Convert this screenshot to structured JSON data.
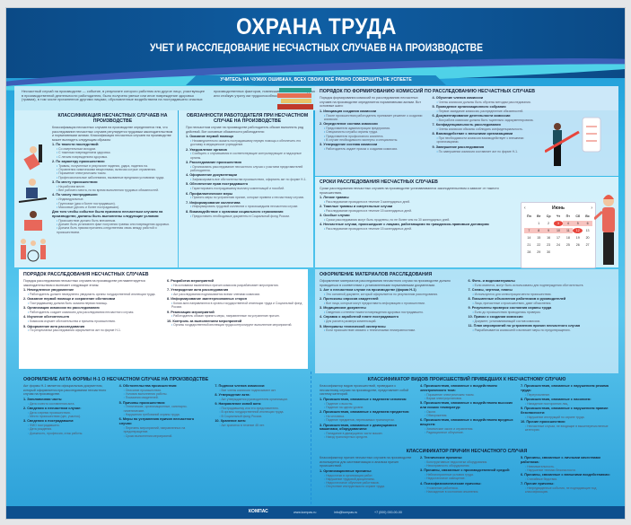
{
  "header": {
    "title": "ОХРАНА ТРУДА",
    "subtitle": "УЧЕТ И РАССЛЕДОВАНИЕ НЕСЧАСТНЫХ СЛУЧАЕВ НА ПРОИЗВОДСТВЕ",
    "tagline": "УЧИТЕСЬ НА ЧУЖИХ ОШИБКАХ, ВСЕХ СВОИХ ВСЁ РАВНО СОВЕРШИТЬ НЕ УСПЕЕТЕ"
  },
  "intro": {
    "text": "Несчастный случай на производстве — событие, в результате которого работник или другое лицо, участвующее в производственной деятельности работодателя, было получено увечье или иное повреждение здоровья (травма), в том числе причиненное другими лицами, обусловленные воздействием на пострадавшего опасных производственных факторов, повлекшие за собой необходимость его перевода на другую работу, временную или стойкую утрату им трудоспособности либо его смерть."
  },
  "sections": [
    {
      "id": "classification",
      "title": "Классификация несчастных случаев на производстве",
      "intro": "Классификация несчастных случаев на производстве определяется тем, что расследование несчастных случаев регулируется трудовым законодательством и нормативными актами. Классификация несчастных случаев на производстве может выглядеть следующим образом:",
      "items": [
        {
          "h": "1. По тяжести последствий:",
          "l": [
            "Со смертельным исходом.",
            "С тяжелым повреждением здоровья.",
            "С легким повреждением здоровья."
          ]
        },
        {
          "h": "2. По характеру происшествия:",
          "l": [
            "Травмы, полученные в результате падения, удара, падения на.",
            "Отравления химическими веществами, включая острые отравления.",
            "Поражение электрическим током.",
            "Профессиональные заболевания, вызванные вредными условиями труда."
          ]
        },
        {
          "h": "3. По месту происшествия:",
          "l": [
            "На рабочем месте.",
            "Вне рабочего места, но во время выполнения трудовых обязанностей."
          ]
        },
        {
          "h": "4. По числу пострадавших:",
          "l": [
            "Индивидуальные.",
            "Групповые (два и более пострадавших).",
            "Массовые (десять и более пострадавших)."
          ]
        },
        {
          "h": "Для того чтобы событие было признано несчастным случаем на производстве, должны быть выполнены следующие условия:",
          "l": [
            "Происшествие должно быть внезапным.",
            "Должен быть установлен факт получения травмы или повреждения здоровья.",
            "Должна быть прямая причинно-следственная связь между работой и происшествием."
          ]
        }
      ]
    },
    {
      "id": "duties",
      "title": "Обязанности работодателя при несчастном случае на производстве",
      "intro": "При несчастном случае на производстве работодатель обязан выполнить ряд действий. Вот основные обязанности работодателя:",
      "items": [
        {
          "h": "1. Оказание первой помощи",
          "l": [
            "Незамедлительно оказать пострадавшему первую помощь и обеспечить его доставку в медицинское учреждение."
          ]
        },
        {
          "h": "2. Уведомление органов",
          "l": [
            "Сообщить о случившемся в соответствующие контролирующие и надзорные органы."
          ]
        },
        {
          "h": "3. Расследование происшествия",
          "l": [
            "Организовать расследование несчастного случая с участием представителей работодателя."
          ]
        },
        {
          "h": "4. Оформление документации",
          "l": [
            "Зафиксировать все обстоятельства происшествия, оформить акт по форме Н-1."
          ]
        },
        {
          "h": "5. Обеспечение прав пострадавшего",
          "l": [
            "Гарантировать пострадавшему выплату компенсаций и пособий."
          ]
        },
        {
          "h": "6. Профилактические меры",
          "l": [
            "Принять меры по устранению причин, которые привели к несчастному случаю."
          ]
        },
        {
          "h": "7. Информирование коллектива",
          "l": [
            "Информировать трудовой коллектив о произошедшем несчастном случае."
          ]
        },
        {
          "h": "8. Взаимодействие с органами социального страхования",
          "l": [
            "Предоставить необходимые документы в Социальный фонд России."
          ]
        }
      ]
    },
    {
      "id": "commission",
      "title": "Порядок по формированию комиссий по расследованию несчастных случаев",
      "intro": "Порядок формирования комиссий по расследованию несчастных случаев на производстве определяется нормативными актами. Вот основные шаги:",
      "items": [
        {
          "h": "1. Инициация создания комиссии",
          "l": [
            "После происшествия работодатель принимает решение о создании комиссии."
          ]
        },
        {
          "h": "2. Определение состава комиссии",
          "l": [
            "Представители администрации предприятия.",
            "Специалисты службы охраны труда.",
            "Представители профсоюзного комитета.",
            "В случае необходимости эксперты и специалисты."
          ]
        },
        {
          "h": "3. Утверждение состава комиссии",
          "l": [
            "Работодатель издает приказ о создании комиссии."
          ]
        },
        {
          "h": "4. Обучение членов комиссии",
          "l": [
            "Члены комиссии должны быть обучены методам расследования."
          ]
        },
        {
          "h": "5. Проведение организационного собрания",
          "l": [
            "Первое заседание комиссии, распределение обязанностей."
          ]
        },
        {
          "h": "6. Документирование деятельности комиссии",
          "l": [
            "Вся работа комиссии должна быть тщательно задокументирована."
          ]
        },
        {
          "h": "7. Конфиденциальность расследования",
          "l": [
            "Члены комиссии обязаны соблюдать конфиденциальность."
          ]
        },
        {
          "h": "8. Взаимодействие с внешними организациями",
          "l": [
            "При необходимости комиссия взаимодействует с внешними организациями."
          ]
        },
        {
          "h": "9. Завершение расследования",
          "l": [
            "По завершении комиссия составляет акт по форме Н-1."
          ]
        }
      ]
    },
    {
      "id": "deadlines",
      "title": "Сроки расследования несчастных случаев",
      "intro": "Сроки расследования несчастных случаев на производстве устанавливаются законодательством и зависят от тяжести происшествия.",
      "items": [
        {
          "h": "1. Легкие травмы",
          "l": [
            "Расследование проводится в течение 3 календарных дней."
          ]
        },
        {
          "h": "2. Тяжелые травмы и смертельные случаи",
          "l": [
            "Расследование проводится в течение 15 календарных дней."
          ]
        },
        {
          "h": "3. Особые случаи",
          "l": [
            "Сроки расследования могут быть продлены, но не более чем на 30 календарных дней."
          ]
        },
        {
          "h": "4. Несчастные случаи, происшедшие с лицами, работающими по гражданско-правовым договорам",
          "l": [
            "Расследование проводится в течение 15 календарных дней."
          ]
        }
      ]
    },
    {
      "id": "procedure",
      "title": "Порядок расследования несчастных случаев",
      "intro": "Порядок расследования несчастных случаев на производстве регламентируется законодательством и включает следующие этапы:",
      "items": [
        {
          "h": "1. Немедленное уведомление",
          "l": [
            "Работодатель должен немедленно уведомить органы государственной инспекции труда."
          ]
        },
        {
          "h": "2. Оказание первой помощи и сохранение обстановки",
          "l": [
            "Пострадавшему должна быть оказана первая помощь."
          ]
        },
        {
          "h": "3. Организация комиссии по расследованию",
          "l": [
            "Работодатель создает комиссию для расследования несчастного случая."
          ]
        },
        {
          "h": "4. Изучение обстоятельств",
          "l": [
            "Комиссия изучает обстоятельства и причины происшествия."
          ]
        },
        {
          "h": "5. Оформление акта расследования",
          "l": [
            "По результатам расследования оформляется акт по форме Н-1."
          ]
        },
        {
          "h": "6. Разработка мероприятий",
          "l": [
            "На основании выявленных причин комиссия разрабатывает мероприятия."
          ]
        },
        {
          "h": "7. Утверждение акта расследования",
          "l": [
            "Акт расследования подписывается всеми членами комиссии."
          ]
        },
        {
          "h": "8. Информирование заинтересованных сторон",
          "l": [
            "Копии акта направляются в органы государственной инспекции труда и Социальный фонд России."
          ]
        },
        {
          "h": "9. Реализация мероприятий",
          "l": [
            "Работодатель обязан принять меры, направленные на устранение причин."
          ]
        },
        {
          "h": "10. Контроль за выполнением мероприятий",
          "l": [
            "Органы государственной инспекции труда контролируют выполнение мероприятий."
          ]
        }
      ]
    },
    {
      "id": "materials",
      "title": "Оформление материалов расследования",
      "intro": "Оформление материалов расследования несчастного случая на производстве должно проводиться в соответствии с установленными нормативными документами.",
      "items": [
        {
          "h": "1. Акт о несчастном случае на производстве (форма Н-1)",
          "l": [
            "Это основной документ, который оформляется по результатам расследования."
          ]
        },
        {
          "h": "2. Протоколы опросов свидетелей",
          "l": [
            "Все лица, которые могут предоставить информацию о происшествии."
          ]
        },
        {
          "h": "3. Медицинские документы",
          "l": [
            "Сведения о степени тяжести повреждения здоровья пострадавшего."
          ]
        },
        {
          "h": "4. Справка о заработной плате пострадавшего",
          "l": [
            "Для расчета размера компенсаций."
          ]
        },
        {
          "h": "5. Материалы технической экспертизы",
          "l": [
            "Если происшествие связано с техническими неисправностями."
          ]
        },
        {
          "h": "6. Фото- и видеоматериалы",
          "l": [
            "Если имеются, могут быть использованы для подтверждения обстоятельств."
          ]
        },
        {
          "h": "7. Схемы, чертежи, планы",
          "l": [
            "Используются для иллюстрации места происшествия."
          ]
        },
        {
          "h": "8. Письменные объяснения работников и руководителей",
          "l": [
            "Лица, причастные к происшествию, дают объяснения."
          ]
        },
        {
          "h": "9. Результаты проверок состояния охраны труда",
          "l": [
            "Если до происшествия проводились проверки."
          ]
        },
        {
          "h": "10. Приказ о создании комиссии",
          "l": [
            "Документ, устанавливающий состав комиссии."
          ]
        },
        {
          "h": "11. План мероприятий по устранению причин несчастного случая",
          "l": [
            "Разрабатывается комиссией и включает меры по предотвращению."
          ]
        }
      ]
    },
    {
      "id": "incident_types",
      "title": "Классификатор видов происшествий приведших к несчастному случаю",
      "intro": "Классификатор видов происшествий, приведших к несчастному случаю на производстве, представляет собой систему категорий.",
      "items": [
        {
          "h": "1. Происшествия, связанные с падением человека:",
          "l": [
            "Падение с высоты.",
            "Падение на одном уровне."
          ]
        },
        {
          "h": "2. Происшествия, связанные с падением предметов:",
          "l": [
            "На человека.",
            "Падение предметов, перевозимых транспортом."
          ]
        },
        {
          "h": "3. Происшествия, связанные с движущимися машинами, оборудованием:",
          "l": [
            "Попадание в движущиеся части машин.",
            "Наезд транспортных средств."
          ]
        },
        {
          "h": "4. Происшествия, связанные с воздействием электрического тока:",
          "l": [
            "Поражение электрическим током.",
            "Взрыв электроустановок."
          ]
        },
        {
          "h": "5. Происшествия, связанные с воздействием высоких или низких температур:",
          "l": [
            "Ожоги.",
            "Обморожения."
          ]
        },
        {
          "h": "6. Происшествия, связанные с воздействием вредных веществ:",
          "l": [
            "Химические ожоги и отравления.",
            "Радиационное облучение."
          ]
        },
        {
          "h": "7. Происшествия, связанные с нарушением режима труда:",
          "l": [
            "Переутомление."
          ]
        },
        {
          "h": "8. Происшествия, связанные с насилием:",
          "l": [
            "Нападение посторонних лиц."
          ]
        },
        {
          "h": "9. Происшествия, связанные с нарушением правил безопасности:",
          "l": [
            "Нарушение инструкций по охране труда."
          ]
        },
        {
          "h": "10. Прочие происшествия:",
          "l": [
            "Несчастные случаи, не входящие в вышеперечисленные категории."
          ]
        }
      ]
    },
    {
      "id": "causes",
      "title": "Классификатор причин несчастного случая",
      "intro": "Классификатор причин несчастных случаев на производстве используется для систематизации и анализа причин происшествий.",
      "items": [
        {
          "h": "1. Организационные причины:",
          "l": [
            "Недостатки в организации работ.",
            "Нарушение трудовой дисциплины.",
            "Недостаточное обучение работников.",
            "Отсутствие инструктажа по охране труда."
          ]
        },
        {
          "h": "2. Технические причины:",
          "l": [
            "Конструктивные недостатки оборудования.",
            "Неисправность оборудования."
          ]
        },
        {
          "h": "3. Причины, связанные с производственной средой:",
          "l": [
            "Неблагоприятные условия труда.",
            "Недостаточное освещение."
          ]
        },
        {
          "h": "4. Психофизиологические причины:",
          "l": [
            "Утомление работника.",
            "Нахождение в состоянии опьянения."
          ]
        },
        {
          "h": "5. Причины, связанные с личными качествами работника:",
          "l": [
            "Невнимательность.",
            "Нарушение техники безопасности."
          ]
        },
        {
          "h": "6. Причины, связанные с внешними воздействиями:",
          "l": [
            "Стихийные бедствия."
          ]
        },
        {
          "h": "7. Прочие причины:",
          "l": [
            "Непредвиденные события, не подпадающие под классификацию."
          ]
        }
      ]
    },
    {
      "id": "act_n1",
      "title": "Оформление акта формы Н-1 о несчастном случае на производстве",
      "intro": "Акт формы Н-1 является официальным документом, который оформляется при расследовании несчастного случая на производстве.",
      "items": [
        {
          "h": "1. Заголовочная часть:",
          "l": [
            "Дата и место составления акта."
          ]
        },
        {
          "h": "2. Сведения о несчастном случае:",
          "l": [
            "Дата и время происшествия.",
            "Место происшествия (цех, участок)."
          ]
        },
        {
          "h": "3. Сведения о пострадавшем:",
          "l": [
            "ФИО пострадавшего.",
            "Дата рождения.",
            "Должность, профессия, стаж работы."
          ]
        },
        {
          "h": "4. Обстоятельства происшествия:",
          "l": [
            "Описание происшествия.",
            "Условия выполнения работы.",
            "Показания свидетелей."
          ]
        },
        {
          "h": "5. Причины происшествия:",
          "l": [
            "Технические, организационные, санитарно-гигиенические.",
            "Нарушения требований охраны труда."
          ]
        },
        {
          "h": "6. Меры по устранению причин несчастного случая:",
          "l": [
            "Перечень мероприятий, направленных на предотвращение.",
            "Сроки выполнения мероприятий."
          ]
        },
        {
          "h": "7. Подписи членов комиссии:",
          "l": [
            "Все члены комиссии подписывают акт."
          ]
        },
        {
          "h": "8. Утверждение акта:",
          "l": [
            "Акт утверждается руководителем организации."
          ]
        },
        {
          "h": "9. Направление копий акта:",
          "l": [
            "Пострадавшему или его представителю.",
            "В органы государственной инспекции труда.",
            "В Социальный фонд России."
          ]
        },
        {
          "h": "10. Хранение акта:",
          "l": [
            "Акт хранится в течение 45 лет."
          ]
        }
      ]
    }
  ],
  "calendar": {
    "month": "Июнь",
    "prev": "‹",
    "next": "›",
    "weekdays": [
      "Пн",
      "Вт",
      "Ср",
      "Чт",
      "Пт",
      "Сб",
      "Вс"
    ],
    "first_weekday_index": 1,
    "days_in_month": 30,
    "selected_days": [
      3,
      12
    ],
    "range_days": [
      3,
      4,
      5,
      6,
      7,
      8,
      9,
      10,
      11,
      12
    ]
  },
  "footer": {
    "logo": "КОМПАС",
    "site": "www.kompas.ru",
    "email": "info@kompas.ru",
    "phone": "+7 (000) 000-00-00"
  },
  "colors": {
    "header": "#0b4a86",
    "accent": "#1e8ed0",
    "highlight": "#e8453c"
  }
}
